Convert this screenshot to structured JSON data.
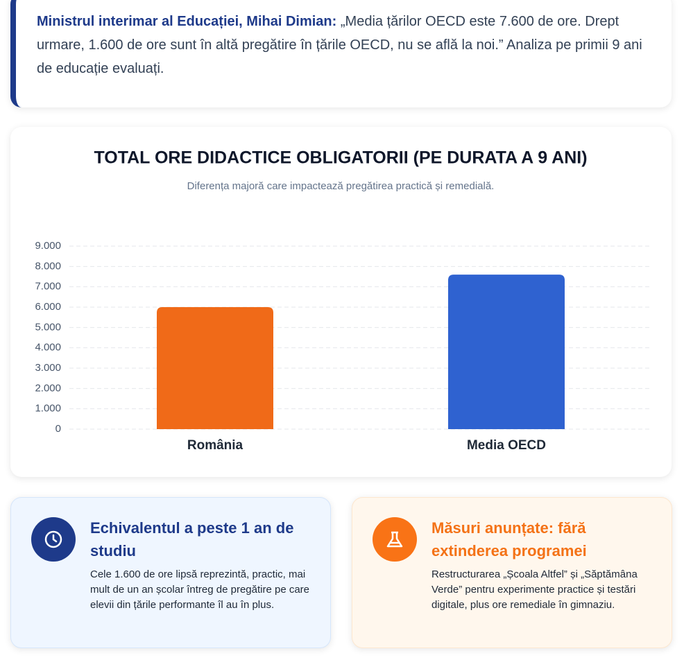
{
  "quote": {
    "speaker": "Ministrul interimar al Educației, Mihai Dimian:",
    "text": "„Media țărilor OECD este 7.600 de ore. Drept urmare, 1.600 de ore sunt în altă pregătire în țările OECD, nu se află la noi.” Analiza pe primii 9 ani de educație evaluați."
  },
  "chart_data": {
    "type": "bar",
    "title": "TOTAL ORE DIDACTICE OBLIGATORII (PE DURATA A 9 ANI)",
    "subtitle": "Diferența majoră care impactează pregătirea practică și remedială.",
    "categories": [
      "România",
      "Media OECD"
    ],
    "values": [
      6000,
      7600
    ],
    "colors": [
      "#f06a18",
      "#2f62d0"
    ],
    "ylim": [
      0,
      9000
    ],
    "yticks": [
      0,
      {
        "value": 1000,
        "label": "1.000"
      },
      {
        "value": 2000,
        "label": "2.000"
      },
      {
        "value": 3000,
        "label": "3.000"
      },
      {
        "value": 4000,
        "label": "4.000"
      },
      {
        "value": 5000,
        "label": "5.000"
      },
      {
        "value": 6000,
        "label": "6.000"
      },
      {
        "value": 7000,
        "label": "7.000"
      },
      {
        "value": 8000,
        "label": "8.000"
      },
      {
        "value": 9000,
        "label": "9.000"
      }
    ],
    "grid": true
  },
  "cards": [
    {
      "title": "Echivalentul a peste 1 an de studiu",
      "text": "Cele 1.600 de ore lipsă reprezintă, practic, mai mult de un an școlar întreg de pregătire pe care elevii din țările performante îl au în plus."
    },
    {
      "title": "Măsuri anunțate: fără extinderea programei",
      "text": "Restructurarea „Școala Altfel” și „Săptămâna Verde” pentru experimente practice și testări digitale, plus ore remediale în gimnaziu."
    }
  ]
}
